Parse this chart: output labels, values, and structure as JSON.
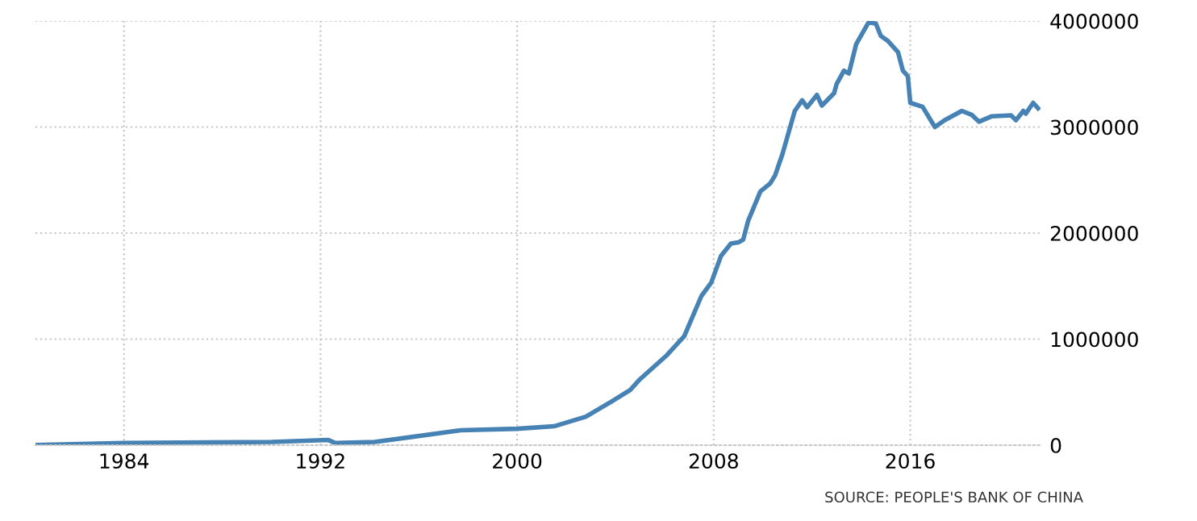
{
  "chart_data": {
    "type": "line",
    "x": [
      1980.4,
      1984,
      1990,
      1992.3,
      1992.6,
      1994.2,
      1997.7,
      2000,
      2001.5,
      2002.8,
      2003.9,
      2004.6,
      2005.0,
      2006.1,
      2006.8,
      2007.5,
      2007.9,
      2008.3,
      2008.7,
      2009.0,
      2009.2,
      2009.4,
      2009.9,
      2010.3,
      2010.5,
      2010.8,
      2011.3,
      2011.6,
      2011.8,
      2012.2,
      2012.4,
      2012.9,
      2013.0,
      2013.3,
      2013.5,
      2013.8,
      2014.3,
      2014.6,
      2014.8,
      2015.1,
      2015.5,
      2015.7,
      2015.9,
      2016.0,
      2016.5,
      2017.0,
      2017.4,
      2018.1,
      2018.5,
      2018.8,
      2019.3,
      2020.1,
      2020.3,
      2020.6,
      2020.7,
      2021.0,
      2021.2
    ],
    "series": [
      {
        "color": "#4682b4",
        "values": [
          2000,
          20000,
          30000,
          50000,
          20000,
          30000,
          140000,
          155000,
          178000,
          269000,
          420000,
          520000,
          622000,
          850000,
          1027000,
          1407000,
          1533000,
          1786000,
          1901000,
          1912000,
          1938000,
          2114000,
          2393000,
          2469000,
          2545000,
          2747000,
          3152000,
          3252000,
          3187000,
          3303000,
          3202000,
          3319000,
          3404000,
          3531000,
          3505000,
          3783000,
          3986000,
          3976000,
          3859000,
          3809000,
          3707000,
          3531000,
          3480000,
          3228000,
          3191000,
          3000000,
          3065000,
          3152000,
          3115000,
          3050000,
          3100000,
          3110000,
          3065000,
          3152000,
          3126000,
          3228000,
          3176000
        ]
      }
    ],
    "xlim": [
      1980.4,
      2021.3
    ],
    "xticks": [
      1984,
      1992,
      2000,
      2008,
      2016
    ],
    "ylim": [
      0,
      4000000
    ],
    "yticks": [
      0,
      1000000,
      2000000,
      3000000,
      4000000
    ],
    "grid": true,
    "line_style": "solid",
    "annotations": [
      "SOURCE: PEOPLE'S BANK OF CHINA"
    ]
  }
}
